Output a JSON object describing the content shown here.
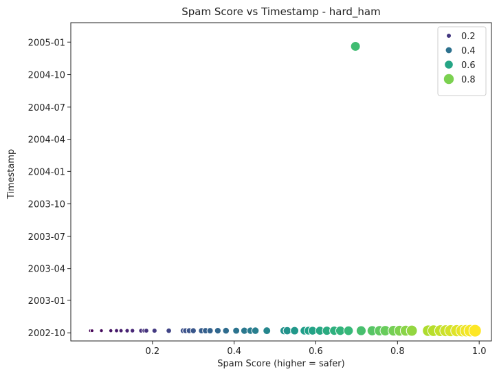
{
  "chart_data": {
    "type": "scatter",
    "title": "Spam Score vs Timestamp - hard_ham",
    "xlabel": "Spam Score (higher = safer)",
    "ylabel": "Timestamp",
    "xlim": [
      0.0,
      1.03
    ],
    "ylim": [
      "2002-09-08",
      "2005-02-25"
    ],
    "x_ticks": [
      0.2,
      0.4,
      0.6,
      0.8,
      1.0
    ],
    "x_tick_labels": [
      "0.2",
      "0.4",
      "0.6",
      "0.8",
      "1.0"
    ],
    "y_ticks": [
      "2002-10-01",
      "2003-01-01",
      "2003-04-01",
      "2003-07-01",
      "2003-10-01",
      "2004-01-01",
      "2004-04-01",
      "2004-07-01",
      "2004-10-01",
      "2005-01-01"
    ],
    "y_tick_labels": [
      "2002-10",
      "2003-01",
      "2003-04",
      "2003-07",
      "2003-10",
      "2004-01",
      "2004-04",
      "2004-07",
      "2004-10",
      "2005-01"
    ],
    "grid": false,
    "colormap": "viridis",
    "hue_and_size": "spam score",
    "legend": {
      "placement": "top-right",
      "entries": [
        {
          "label": "0.2",
          "value": 0.2
        },
        {
          "label": "0.4",
          "value": 0.4
        },
        {
          "label": "0.6",
          "value": 0.6
        },
        {
          "label": "0.8",
          "value": 0.8
        }
      ]
    },
    "points": [
      {
        "x": 0.048,
        "y": "2002-10-07"
      },
      {
        "x": 0.052,
        "y": "2002-10-07"
      },
      {
        "x": 0.075,
        "y": "2002-10-07"
      },
      {
        "x": 0.098,
        "y": "2002-10-07"
      },
      {
        "x": 0.112,
        "y": "2002-10-07"
      },
      {
        "x": 0.123,
        "y": "2002-10-07"
      },
      {
        "x": 0.138,
        "y": "2002-10-07"
      },
      {
        "x": 0.151,
        "y": "2002-10-07"
      },
      {
        "x": 0.172,
        "y": "2002-10-07"
      },
      {
        "x": 0.18,
        "y": "2002-10-07"
      },
      {
        "x": 0.185,
        "y": "2002-10-07"
      },
      {
        "x": 0.205,
        "y": "2002-10-07"
      },
      {
        "x": 0.24,
        "y": "2002-10-07"
      },
      {
        "x": 0.275,
        "y": "2002-10-07"
      },
      {
        "x": 0.281,
        "y": "2002-10-07"
      },
      {
        "x": 0.29,
        "y": "2002-10-07"
      },
      {
        "x": 0.3,
        "y": "2002-10-07"
      },
      {
        "x": 0.32,
        "y": "2002-10-07"
      },
      {
        "x": 0.33,
        "y": "2002-10-07"
      },
      {
        "x": 0.341,
        "y": "2002-10-07"
      },
      {
        "x": 0.36,
        "y": "2002-10-07"
      },
      {
        "x": 0.38,
        "y": "2002-10-07"
      },
      {
        "x": 0.405,
        "y": "2002-10-07"
      },
      {
        "x": 0.425,
        "y": "2002-10-07"
      },
      {
        "x": 0.44,
        "y": "2002-10-07"
      },
      {
        "x": 0.452,
        "y": "2002-10-07"
      },
      {
        "x": 0.48,
        "y": "2002-10-07"
      },
      {
        "x": 0.522,
        "y": "2002-10-07"
      },
      {
        "x": 0.53,
        "y": "2002-10-07"
      },
      {
        "x": 0.548,
        "y": "2002-10-07"
      },
      {
        "x": 0.572,
        "y": "2002-10-07"
      },
      {
        "x": 0.582,
        "y": "2002-10-07"
      },
      {
        "x": 0.592,
        "y": "2002-10-07"
      },
      {
        "x": 0.61,
        "y": "2002-10-07"
      },
      {
        "x": 0.627,
        "y": "2002-10-07"
      },
      {
        "x": 0.645,
        "y": "2002-10-07"
      },
      {
        "x": 0.66,
        "y": "2002-10-07"
      },
      {
        "x": 0.68,
        "y": "2002-10-07"
      },
      {
        "x": 0.711,
        "y": "2002-10-07"
      },
      {
        "x": 0.738,
        "y": "2002-10-07"
      },
      {
        "x": 0.756,
        "y": "2002-10-07"
      },
      {
        "x": 0.77,
        "y": "2002-10-07"
      },
      {
        "x": 0.79,
        "y": "2002-10-07"
      },
      {
        "x": 0.805,
        "y": "2002-10-07"
      },
      {
        "x": 0.82,
        "y": "2002-10-07"
      },
      {
        "x": 0.835,
        "y": "2002-10-07"
      },
      {
        "x": 0.875,
        "y": "2002-10-07"
      },
      {
        "x": 0.888,
        "y": "2002-10-07"
      },
      {
        "x": 0.905,
        "y": "2002-10-07"
      },
      {
        "x": 0.918,
        "y": "2002-10-07"
      },
      {
        "x": 0.93,
        "y": "2002-10-07"
      },
      {
        "x": 0.945,
        "y": "2002-10-07"
      },
      {
        "x": 0.958,
        "y": "2002-10-07"
      },
      {
        "x": 0.968,
        "y": "2002-10-07"
      },
      {
        "x": 0.978,
        "y": "2002-10-07"
      },
      {
        "x": 0.99,
        "y": "2002-10-07"
      },
      {
        "x": 0.697,
        "y": "2004-12-20"
      }
    ]
  }
}
